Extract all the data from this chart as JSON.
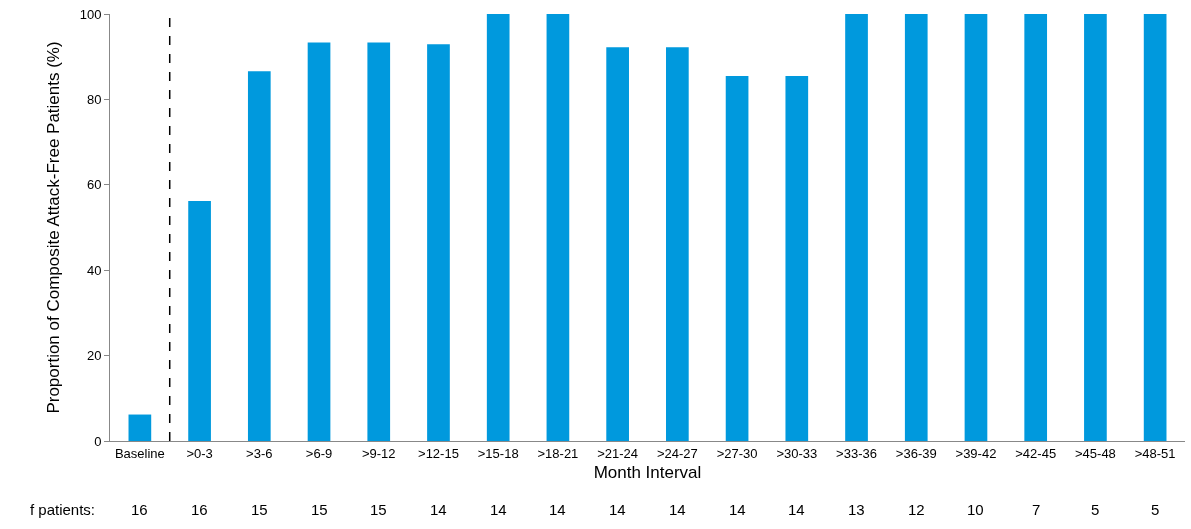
{
  "chart_data": {
    "type": "bar",
    "xlabel": "Month Interval",
    "ylabel": "Proportion of Composite Attack-Free Patients (%)",
    "categories": [
      "Baseline",
      ">0-3",
      ">3-6",
      ">6-9",
      ">9-12",
      ">12-15",
      ">15-18",
      ">18-21",
      ">21-24",
      ">24-27",
      ">27-30",
      ">30-33",
      ">33-36",
      ">36-39",
      ">39-42",
      ">42-45",
      ">45-48",
      ">48-51"
    ],
    "series": [
      {
        "color": "#0099dd",
        "values": [
          6.2,
          56.2,
          86.6,
          93.3,
          93.3,
          92.9,
          100,
          100,
          92.2,
          92.2,
          85.5,
          85.5,
          100,
          100,
          100,
          100,
          100,
          100
        ]
      }
    ],
    "ylim": [
      0,
      100
    ],
    "yticks": [
      0,
      20,
      40,
      60,
      80,
      100
    ],
    "annotations": [
      "f patients:",
      "16",
      "16",
      "15",
      "15",
      "15",
      "14",
      "14",
      "14",
      "14",
      "14",
      "14",
      "14",
      "13",
      "12",
      "10",
      "7",
      "5",
      "5"
    ]
  }
}
